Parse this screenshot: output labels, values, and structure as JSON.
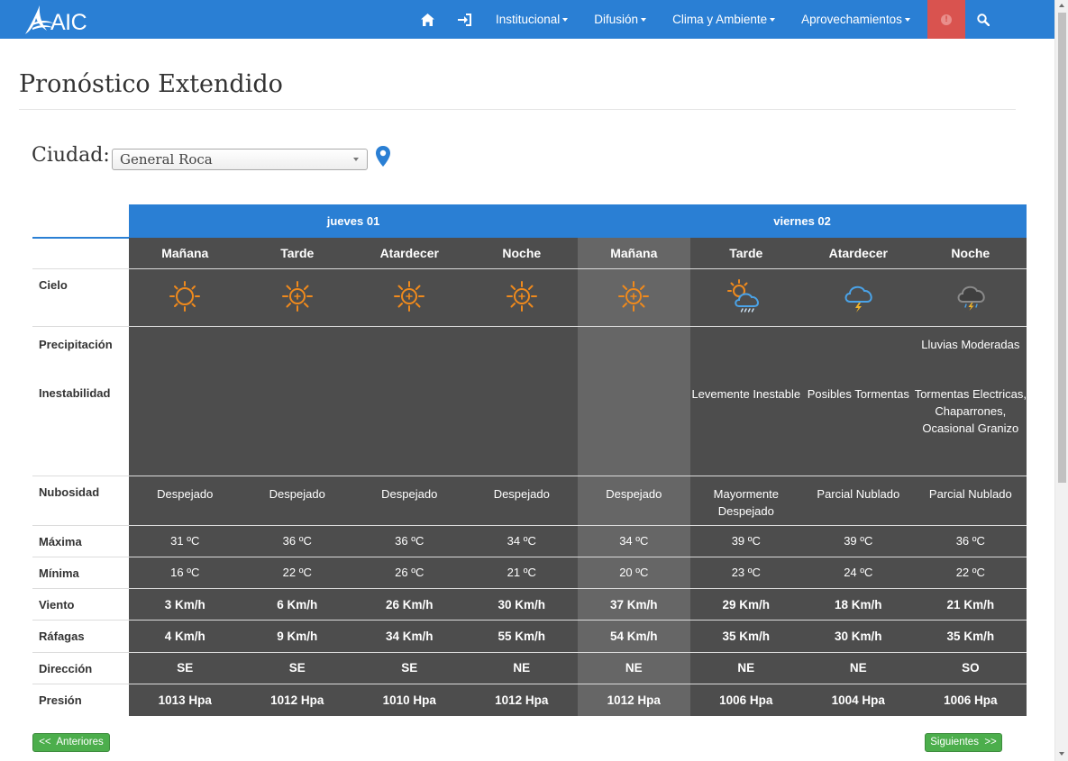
{
  "logo": {
    "text": "AIC"
  },
  "nav": {
    "home_icon": "home-icon",
    "login_icon": "sign-in-icon",
    "items": [
      {
        "label": "Institucional"
      },
      {
        "label": "Difusión"
      },
      {
        "label": "Clima y Ambiente"
      },
      {
        "label": "Aprovechamientos"
      }
    ],
    "alert_icon": "alert-icon",
    "search_icon": "search-icon"
  },
  "page": {
    "title": "Pronóstico Extendido"
  },
  "city": {
    "label": "Ciudad:",
    "selected": "General Roca"
  },
  "forecast": {
    "days": [
      {
        "label": "jueves 01"
      },
      {
        "label": "viernes 02"
      }
    ],
    "row_labels": {
      "cielo": "Cielo",
      "precipitacion": "Precipitación",
      "inestabilidad": "Inestabilidad",
      "nubosidad": "Nubosidad",
      "maxima": "Máxima",
      "minima": "Mínima",
      "viento": "Viento",
      "rafagas": "Ráfagas",
      "direccion": "Dirección",
      "presion": "Presión"
    },
    "periods": [
      {
        "name": "Mañana",
        "sky": "sun-icon",
        "precip": "",
        "instab": "",
        "nubosidad": "Despejado",
        "max": "31 ºC",
        "min": "16 ºC",
        "viento": "3 Km/h",
        "rafagas": "4 Km/h",
        "dir": "SE",
        "presion": "1013 Hpa"
      },
      {
        "name": "Tarde",
        "sky": "hot-sun-icon",
        "precip": "",
        "instab": "",
        "nubosidad": "Despejado",
        "max": "36 ºC",
        "min": "22 ºC",
        "viento": "6 Km/h",
        "rafagas": "9 Km/h",
        "dir": "SE",
        "presion": "1012 Hpa"
      },
      {
        "name": "Atardecer",
        "sky": "hot-sun-icon",
        "precip": "",
        "instab": "",
        "nubosidad": "Despejado",
        "max": "36 ºC",
        "min": "26 ºC",
        "viento": "26 Km/h",
        "rafagas": "34 Km/h",
        "dir": "SE",
        "presion": "1010 Hpa"
      },
      {
        "name": "Noche",
        "sky": "hot-sun-icon",
        "precip": "",
        "instab": "",
        "nubosidad": "Despejado",
        "max": "34 ºC",
        "min": "21 ºC",
        "viento": "30 Km/h",
        "rafagas": "55 Km/h",
        "dir": "NE",
        "presion": "1012 Hpa"
      },
      {
        "name": "Mañana",
        "sky": "hot-sun-icon",
        "precip": "",
        "instab": "",
        "nubosidad": "Despejado",
        "max": "34 ºC",
        "min": "20 ºC",
        "viento": "37 Km/h",
        "rafagas": "54 Km/h",
        "dir": "NE",
        "presion": "1012 Hpa"
      },
      {
        "name": "Tarde",
        "sky": "sun-cloud-rain-icon",
        "precip": "",
        "instab": "Levemente Inestable",
        "nubosidad": "Mayormente Despejado",
        "max": "39 ºC",
        "min": "23 ºC",
        "viento": "29 Km/h",
        "rafagas": "35 Km/h",
        "dir": "NE",
        "presion": "1006 Hpa"
      },
      {
        "name": "Atardecer",
        "sky": "cloud-lightning-icon",
        "precip": "",
        "instab": "Posibles Tormentas",
        "nubosidad": "Parcial Nublado",
        "max": "39 ºC",
        "min": "24 ºC",
        "viento": "18 Km/h",
        "rafagas": "30 Km/h",
        "dir": "NE",
        "presion": "1004 Hpa"
      },
      {
        "name": "Noche",
        "sky": "storm-cloud-icon",
        "precip": "Lluvias Moderadas",
        "instab": "Tormentas Electricas, Chaparrones, Ocasional Granizo",
        "nubosidad": "Parcial Nublado",
        "max": "36 ºC",
        "min": "22 ºC",
        "viento": "21 Km/h",
        "rafagas": "35 Km/h",
        "dir": "SO",
        "presion": "1006 Hpa"
      }
    ]
  },
  "buttons": {
    "prev": "<<  Anteriores",
    "next": "Siguientes  >>"
  },
  "colors": {
    "nav": "#2a7fd4",
    "dark_cell": "#4d4d4d",
    "light_cell": "#666666",
    "sun": "#f08a1c",
    "rain_icon": "#4aa3e8",
    "button": "#4cae4c"
  }
}
